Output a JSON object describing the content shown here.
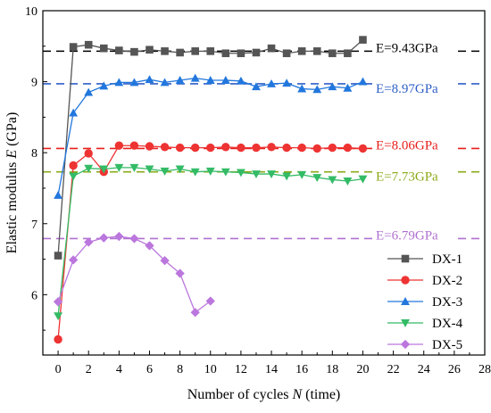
{
  "chart_data": {
    "type": "scatter",
    "xlabel": "Number of cycles N (time)",
    "xlabel_parts": {
      "before": "Number of cycles ",
      "var": "N",
      "after": " (time)"
    },
    "ylabel": "Elastic modulus E (GPa)",
    "ylabel_parts": {
      "before": "Elastic modulus ",
      "var": "E",
      "after": " (GPa)"
    },
    "xlim": [
      -1,
      28
    ],
    "ylim": [
      5.15,
      10
    ],
    "xticks": [
      0,
      2,
      4,
      6,
      8,
      10,
      12,
      14,
      16,
      18,
      20,
      22,
      24,
      26,
      28
    ],
    "yticks": [
      6,
      7,
      8,
      9,
      10
    ],
    "grid": false,
    "legend": {
      "position": "lower-right"
    },
    "series": [
      {
        "name": "DX-1",
        "color": "#555555",
        "marker": "square",
        "x": [
          0,
          1,
          2,
          3,
          4,
          5,
          6,
          7,
          8,
          9,
          10,
          11,
          12,
          13,
          14,
          15,
          16,
          17,
          18,
          19,
          20
        ],
        "y": [
          6.55,
          9.49,
          9.52,
          9.47,
          9.44,
          9.42,
          9.45,
          9.43,
          9.41,
          9.43,
          9.43,
          9.4,
          9.4,
          9.41,
          9.47,
          9.4,
          9.43,
          9.43,
          9.4,
          9.4,
          9.59
        ],
        "mean_line": {
          "value": 9.43,
          "label": "E=9.43GPa",
          "color": "#000000"
        }
      },
      {
        "name": "DX-2",
        "color": "#ee3333",
        "marker": "circle",
        "x": [
          0,
          1,
          2,
          3,
          4,
          5,
          6,
          7,
          8,
          9,
          10,
          11,
          12,
          13,
          14,
          15,
          16,
          17,
          18,
          19,
          20
        ],
        "y": [
          5.37,
          7.82,
          7.99,
          7.73,
          8.1,
          8.1,
          8.09,
          8.08,
          8.07,
          8.07,
          8.07,
          8.08,
          8.07,
          8.07,
          8.08,
          8.07,
          8.07,
          8.06,
          8.07,
          8.07,
          8.06
        ],
        "mean_line": {
          "value": 8.06,
          "label": "E=8.06GPa",
          "color": "#e8201c"
        }
      },
      {
        "name": "DX-3",
        "color": "#2277dd",
        "marker": "triangle-up",
        "x": [
          0,
          1,
          2,
          3,
          4,
          5,
          6,
          7,
          8,
          9,
          10,
          11,
          12,
          13,
          14,
          15,
          16,
          17,
          18,
          19,
          20
        ],
        "y": [
          7.4,
          8.56,
          8.85,
          8.94,
          8.99,
          8.99,
          9.03,
          8.99,
          9.02,
          9.05,
          9.02,
          9.02,
          9.01,
          8.93,
          8.97,
          8.98,
          8.9,
          8.89,
          8.93,
          8.91,
          9.0
        ],
        "mean_line": {
          "value": 8.97,
          "label": "E=8.97GPa",
          "color": "#2f5fc7"
        }
      },
      {
        "name": "DX-4",
        "color": "#33bb66",
        "marker": "triangle-down",
        "x": [
          0,
          1,
          2,
          3,
          4,
          5,
          6,
          7,
          8,
          9,
          10,
          11,
          12,
          13,
          14,
          15,
          16,
          17,
          18,
          19,
          20
        ],
        "y": [
          5.7,
          7.67,
          7.78,
          7.77,
          7.79,
          7.79,
          7.77,
          7.74,
          7.77,
          7.73,
          7.74,
          7.73,
          7.72,
          7.7,
          7.7,
          7.67,
          7.69,
          7.65,
          7.62,
          7.6,
          7.63
        ],
        "mean_line": {
          "value": 7.73,
          "label": "E=7.73GPa",
          "color": "#8aaa1a"
        }
      },
      {
        "name": "DX-5",
        "color": "#bb77dd",
        "marker": "diamond",
        "x": [
          0,
          1,
          2,
          3,
          4,
          5,
          6,
          7,
          8,
          9,
          10
        ],
        "y": [
          5.9,
          6.49,
          6.74,
          6.8,
          6.82,
          6.79,
          6.69,
          6.48,
          6.3,
          5.75,
          5.91
        ],
        "mean_line": {
          "value": 6.79,
          "label": "E=6.79GPa",
          "color": "#b070d0"
        }
      }
    ]
  }
}
